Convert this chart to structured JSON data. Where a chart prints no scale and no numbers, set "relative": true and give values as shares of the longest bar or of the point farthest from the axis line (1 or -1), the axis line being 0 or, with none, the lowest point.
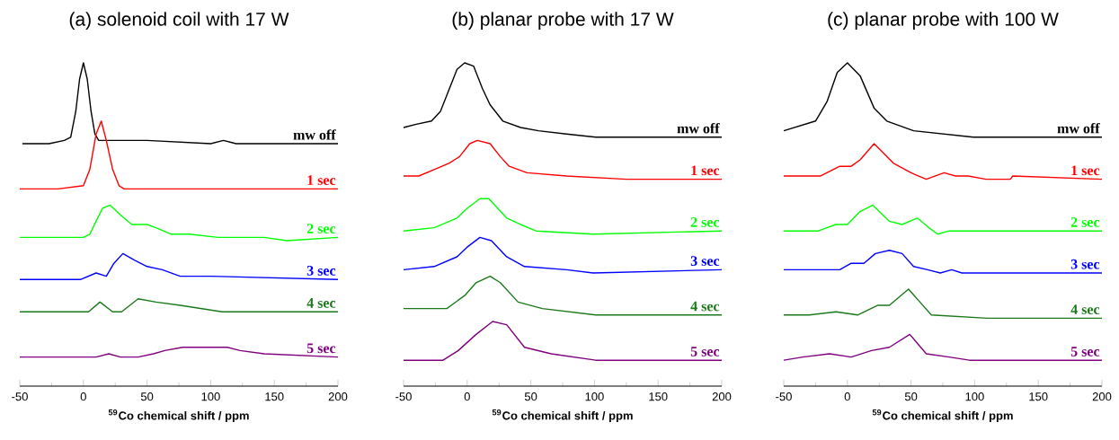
{
  "chart_data": [
    {
      "type": "line",
      "title": "(a) solenoid coil with 17 W",
      "xlabel": "$^{59}$Co chemical shift / ppm",
      "relative": true,
      "xlim": [
        -50,
        200
      ],
      "xticks": [
        -50,
        0,
        50,
        100,
        150,
        200
      ],
      "series": [
        {
          "name": "mw off",
          "color": "#000000",
          "x": [
            -48,
            -27,
            -15,
            -10,
            -6,
            -3,
            0,
            3,
            6,
            9,
            12,
            50,
            100,
            110,
            120,
            200
          ],
          "values": [
            0.75,
            0.75,
            0.76,
            0.77,
            0.85,
            0.95,
            1,
            0.95,
            0.85,
            0.78,
            0.76,
            0.76,
            0.75,
            0.76,
            0.75,
            0.75
          ]
        },
        {
          "name": "1 sec",
          "color": "#ff0000",
          "x": [
            -50,
            -30,
            -20,
            0,
            5,
            10,
            14,
            18,
            23,
            28,
            32,
            100,
            150,
            200
          ],
          "values": [
            0.61,
            0.61,
            0.61,
            0.62,
            0.67,
            0.78,
            0.82,
            0.76,
            0.67,
            0.62,
            0.61,
            0.61,
            0.61,
            0.61
          ]
        },
        {
          "name": "2 sec",
          "color": "#00ff00",
          "x": [
            -50,
            -20,
            0,
            5,
            10,
            15,
            21,
            29,
            38,
            50,
            57,
            69,
            83,
            106,
            142,
            160,
            200
          ],
          "values": [
            0.46,
            0.46,
            0.46,
            0.47,
            0.51,
            0.55,
            0.56,
            0.53,
            0.5,
            0.5,
            0.49,
            0.47,
            0.47,
            0.46,
            0.46,
            0.45,
            0.46
          ]
        },
        {
          "name": "3 sec",
          "color": "#0000ff",
          "x": [
            -50,
            -20,
            -2,
            10,
            18,
            24,
            31,
            40,
            50,
            62,
            76,
            100,
            200
          ],
          "values": [
            0.33,
            0.33,
            0.33,
            0.35,
            0.34,
            0.38,
            0.41,
            0.39,
            0.37,
            0.36,
            0.34,
            0.34,
            0.33
          ]
        },
        {
          "name": "4 sec",
          "color": "#1a7a1a",
          "x": [
            -50,
            0,
            4,
            13,
            23,
            30,
            43,
            57,
            76,
            109,
            200
          ],
          "values": [
            0.23,
            0.23,
            0.23,
            0.26,
            0.23,
            0.23,
            0.27,
            0.26,
            0.25,
            0.23,
            0.23
          ]
        },
        {
          "name": "5 sec",
          "color": "#800080",
          "x": [
            -50,
            10,
            20,
            29,
            43,
            55,
            64,
            78,
            99,
            113,
            123,
            142,
            200
          ],
          "values": [
            0.09,
            0.09,
            0.1,
            0.09,
            0.09,
            0.1,
            0.11,
            0.12,
            0.12,
            0.12,
            0.11,
            0.1,
            0.09
          ]
        }
      ]
    },
    {
      "type": "line",
      "title": "(b) planar probe with 17 W",
      "xlabel": "$^{59}$Co chemical shift / ppm",
      "relative": true,
      "xlim": [
        -50,
        200
      ],
      "xticks": [
        -50,
        0,
        50,
        100,
        150,
        200
      ],
      "series": [
        {
          "name": "mw off",
          "color": "#000000",
          "x": [
            -50,
            -40,
            -28,
            -21,
            -14,
            -8,
            -2,
            5,
            12,
            18,
            28,
            42,
            56,
            78,
            101,
            136,
            200
          ],
          "values": [
            0.8,
            0.81,
            0.82,
            0.85,
            0.92,
            0.98,
            1,
            0.99,
            0.92,
            0.87,
            0.82,
            0.8,
            0.79,
            0.78,
            0.77,
            0.77,
            0.77
          ]
        },
        {
          "name": "1 sec",
          "color": "#ff0000",
          "x": [
            -50,
            -38,
            -26,
            -14,
            -6,
            2,
            8,
            18,
            26,
            33,
            47,
            78,
            125,
            200
          ],
          "values": [
            0.65,
            0.65,
            0.67,
            0.69,
            0.71,
            0.75,
            0.76,
            0.75,
            0.71,
            0.68,
            0.66,
            0.65,
            0.64,
            0.64
          ]
        },
        {
          "name": "2 sec",
          "color": "#00ff00",
          "x": [
            -50,
            -26,
            -8,
            0,
            10,
            17,
            31,
            42,
            54,
            99,
            200
          ],
          "values": [
            0.48,
            0.49,
            0.52,
            0.55,
            0.58,
            0.58,
            0.52,
            0.5,
            0.48,
            0.47,
            0.48
          ]
        },
        {
          "name": "3 sec",
          "color": "#0000ff",
          "x": [
            -50,
            -26,
            -8,
            0,
            10,
            19,
            31,
            45,
            78,
            99,
            200
          ],
          "values": [
            0.36,
            0.37,
            0.4,
            0.43,
            0.46,
            0.45,
            0.4,
            0.37,
            0.36,
            0.35,
            0.36
          ]
        },
        {
          "name": "4 sec",
          "color": "#1a7a1a",
          "x": [
            -50,
            -16,
            -2,
            7,
            18,
            26,
            40,
            59,
            101,
            200
          ],
          "values": [
            0.24,
            0.24,
            0.28,
            0.32,
            0.34,
            0.32,
            0.26,
            0.24,
            0.22,
            0.22
          ]
        },
        {
          "name": "5 sec",
          "color": "#800080",
          "x": [
            -50,
            -19,
            -7,
            7,
            20,
            31,
            45,
            66,
            101,
            148,
            200
          ],
          "values": [
            0.08,
            0.08,
            0.11,
            0.16,
            0.2,
            0.19,
            0.12,
            0.1,
            0.08,
            0.08,
            0.08
          ]
        }
      ]
    },
    {
      "type": "line",
      "title": "(c) planar probe with 100 W",
      "xlabel": "$^{59}$Co chemical shift / ppm",
      "relative": true,
      "xlim": [
        -50,
        200
      ],
      "xticks": [
        -50,
        0,
        50,
        100,
        150,
        200
      ],
      "series": [
        {
          "name": "mw off",
          "color": "#000000",
          "x": [
            -50,
            -25,
            -16,
            -8,
            0,
            10,
            21,
            31,
            52,
            99,
            200
          ],
          "values": [
            0.79,
            0.82,
            0.88,
            0.97,
            1,
            0.96,
            0.86,
            0.82,
            0.79,
            0.77,
            0.77
          ]
        },
        {
          "name": "1 sec",
          "color": "#ff0000",
          "x": [
            -50,
            -21,
            -6,
            3,
            10,
            21,
            36,
            50,
            62,
            76,
            85,
            95,
            109,
            128,
            130,
            200
          ],
          "values": [
            0.65,
            0.65,
            0.68,
            0.68,
            0.7,
            0.75,
            0.69,
            0.66,
            0.64,
            0.66,
            0.65,
            0.65,
            0.64,
            0.64,
            0.65,
            0.64
          ]
        },
        {
          "name": "2 sec",
          "color": "#00ff00",
          "x": [
            -50,
            -23,
            -9,
            0,
            10,
            20,
            33,
            43,
            55,
            64,
            71,
            80,
            200
          ],
          "values": [
            0.48,
            0.48,
            0.5,
            0.5,
            0.54,
            0.56,
            0.51,
            0.5,
            0.52,
            0.49,
            0.47,
            0.48,
            0.48
          ]
        },
        {
          "name": "3 sec",
          "color": "#0000ff",
          "x": [
            -50,
            -28,
            -18,
            -6,
            3,
            13,
            22,
            33,
            43,
            52,
            63,
            73,
            82,
            90,
            200
          ],
          "values": [
            0.36,
            0.36,
            0.36,
            0.36,
            0.38,
            0.38,
            0.41,
            0.42,
            0.41,
            0.37,
            0.36,
            0.35,
            0.36,
            0.35,
            0.35
          ]
        },
        {
          "name": "4 sec",
          "color": "#1a7a1a",
          "x": [
            -50,
            -30,
            -9,
            8,
            24,
            33,
            48,
            57,
            66,
            110,
            200
          ],
          "values": [
            0.22,
            0.22,
            0.23,
            0.22,
            0.25,
            0.25,
            0.3,
            0.26,
            0.22,
            0.21,
            0.21
          ]
        },
        {
          "name": "5 sec",
          "color": "#800080",
          "x": [
            -50,
            -35,
            -14,
            3,
            19,
            33,
            49,
            62,
            80,
            96,
            111,
            200
          ],
          "values": [
            0.08,
            0.09,
            0.1,
            0.09,
            0.11,
            0.12,
            0.16,
            0.1,
            0.09,
            0.08,
            0.08,
            0.08
          ]
        }
      ]
    }
  ]
}
